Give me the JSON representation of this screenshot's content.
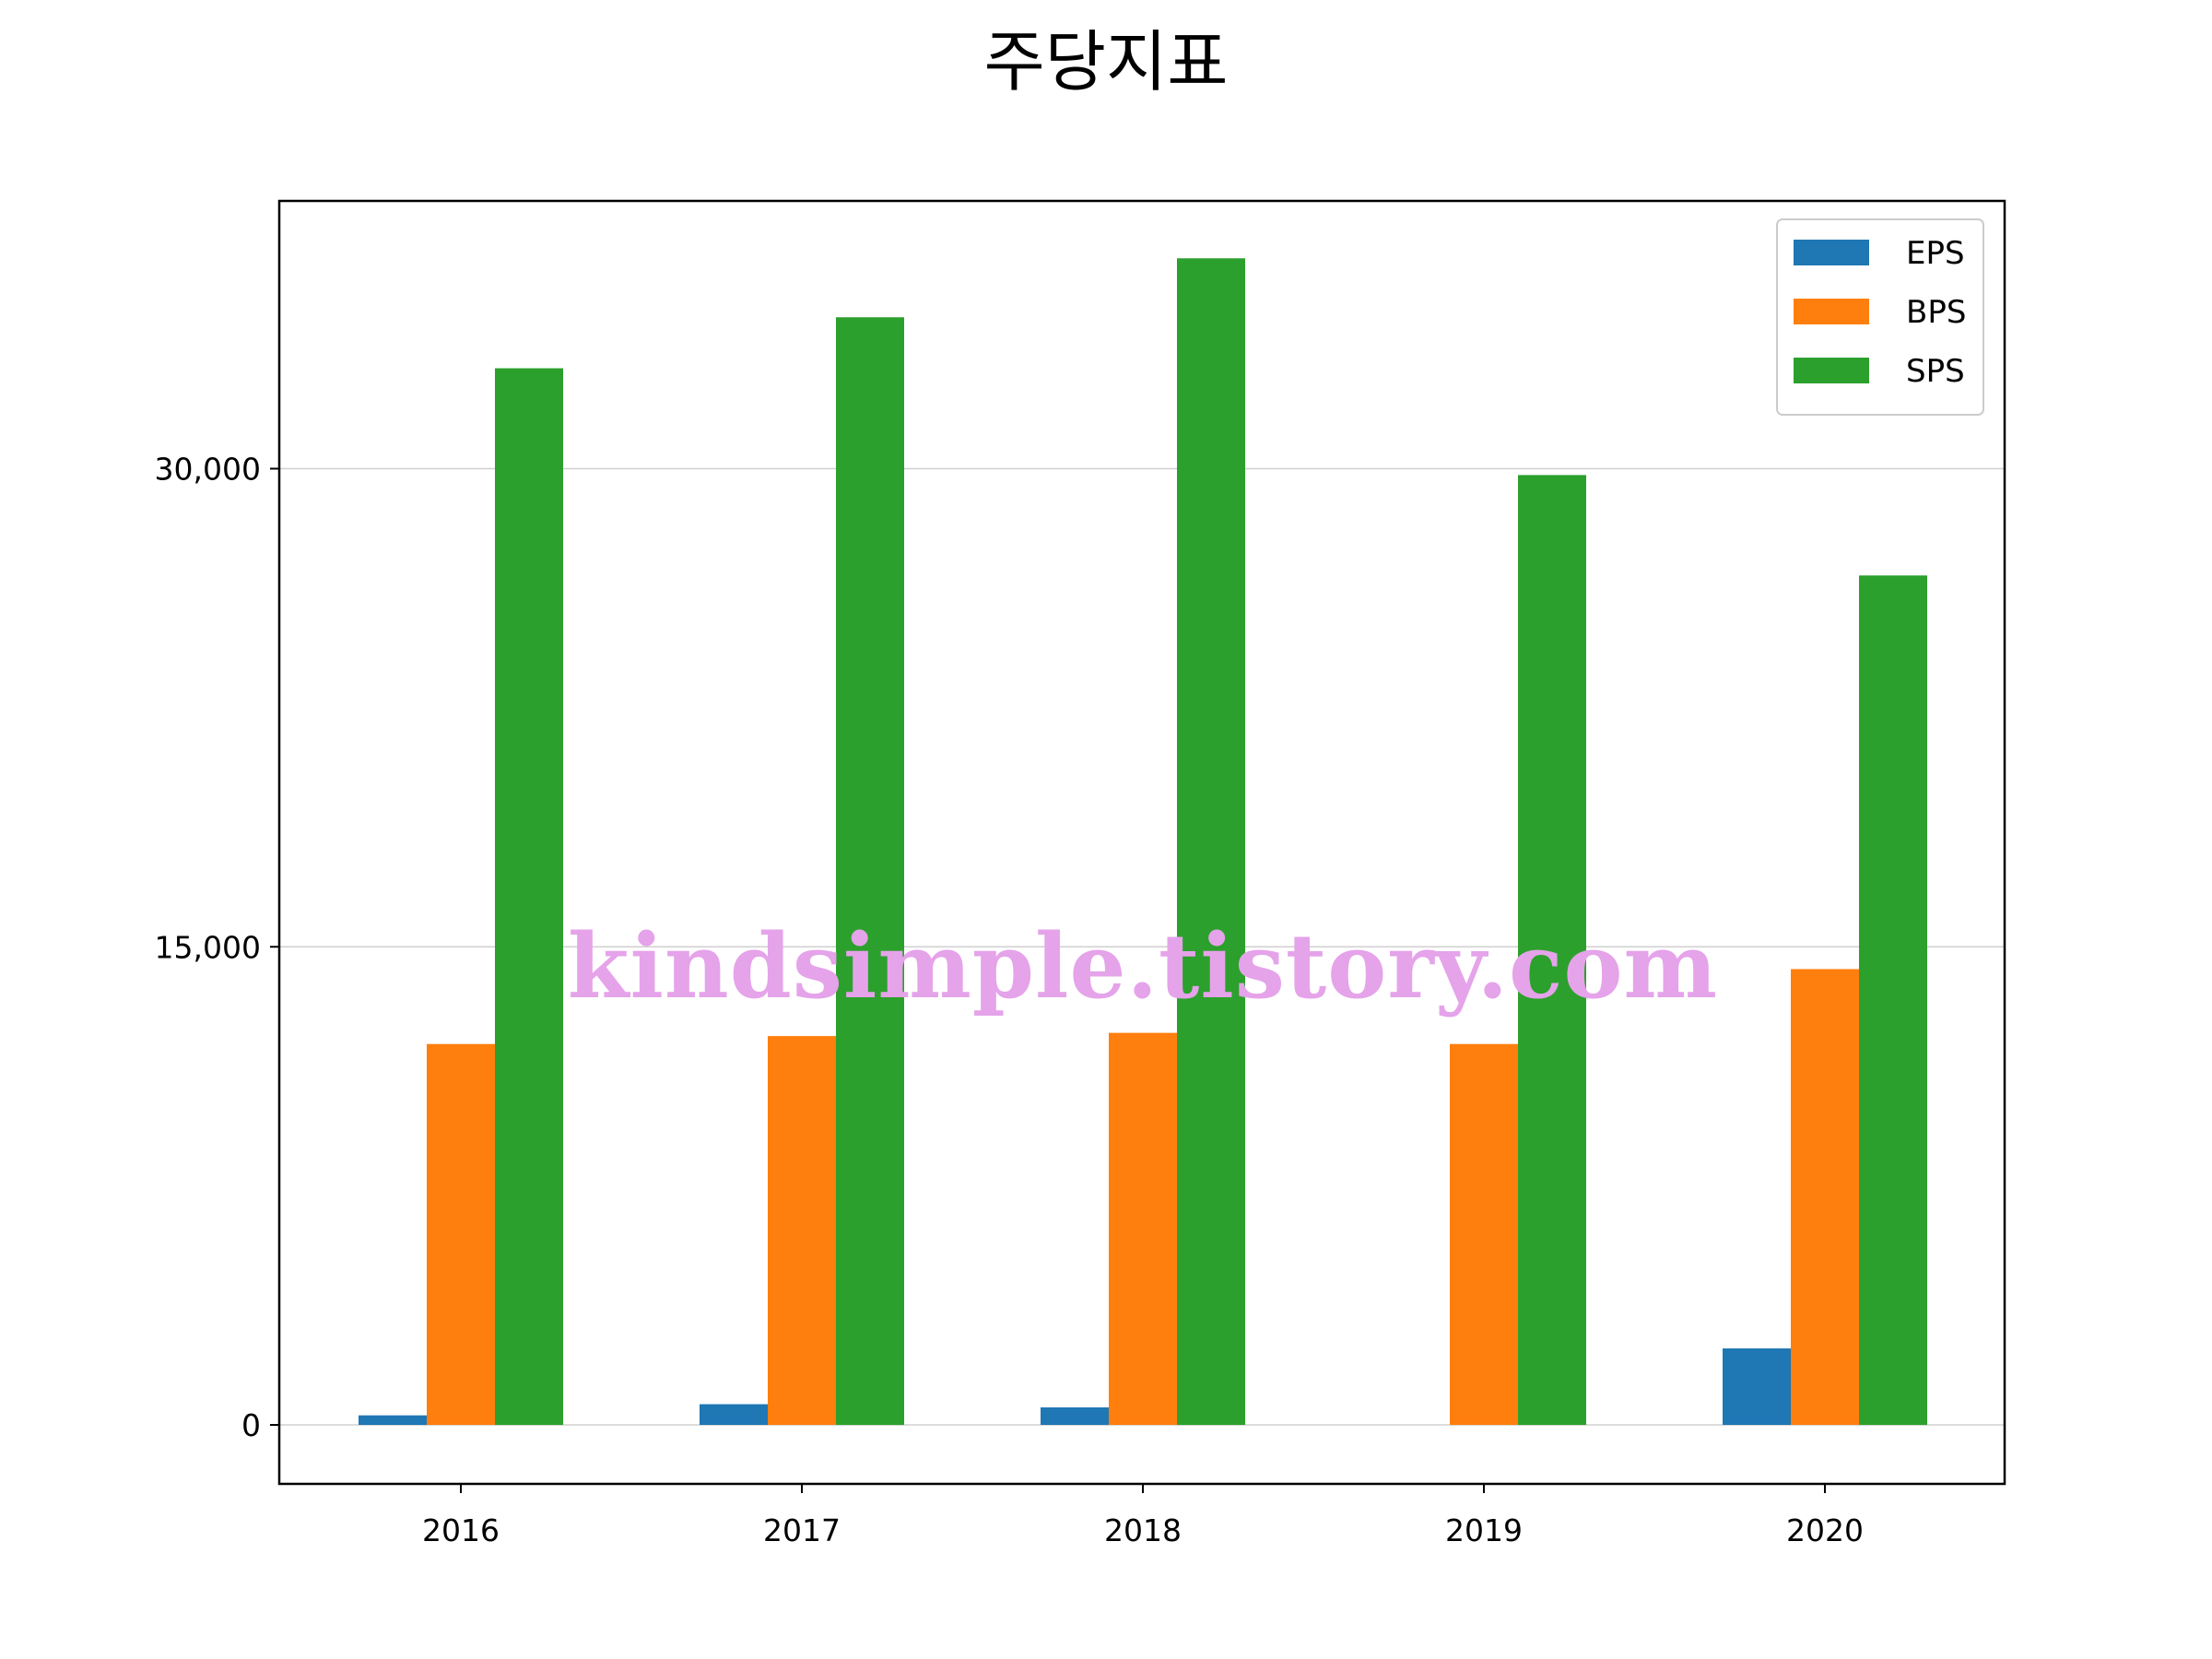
{
  "chart_data": {
    "type": "bar",
    "title": "주당지표",
    "xlabel": "",
    "ylabel": "",
    "categories": [
      "2016",
      "2017",
      "2018",
      "2019",
      "2020"
    ],
    "series": [
      {
        "name": "EPS",
        "color": "#1f77b4",
        "values": [
          300,
          650,
          550,
          0,
          2400
        ]
      },
      {
        "name": "BPS",
        "color": "#ff7f0e",
        "values": [
          11950,
          12200,
          12300,
          11950,
          14300
        ]
      },
      {
        "name": "SPS",
        "color": "#2ca02c",
        "values": [
          33150,
          34750,
          36600,
          29800,
          26650
        ]
      }
    ],
    "yticks": [
      {
        "value": 0,
        "label": "0"
      },
      {
        "value": 15000,
        "label": "15,000"
      },
      {
        "value": 30000,
        "label": "30,000"
      }
    ],
    "ylim": [
      -1850,
      38400
    ],
    "grid": true,
    "legend_position": "top-right"
  },
  "watermark": "kindsimple.tistory.com"
}
